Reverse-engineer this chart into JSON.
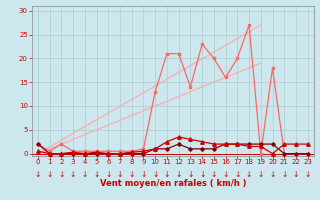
{
  "bg_color": "#cce8ee",
  "grid_color": "#aacccc",
  "xlabel": "Vent moyen/en rafales ( km/h )",
  "xlabel_color": "#cc0000",
  "tick_color": "#cc0000",
  "ylim": [
    -0.5,
    31
  ],
  "xlim": [
    -0.5,
    23.5
  ],
  "yticks": [
    0,
    5,
    10,
    15,
    20,
    25,
    30
  ],
  "xticks": [
    0,
    1,
    2,
    3,
    4,
    5,
    6,
    7,
    8,
    9,
    10,
    11,
    12,
    13,
    14,
    15,
    16,
    17,
    18,
    19,
    20,
    21,
    22,
    23
  ],
  "series_diagonal": {
    "x": [
      0,
      19
    ],
    "y": [
      0,
      19
    ],
    "color": "#ffaaaa",
    "linewidth": 0.9,
    "zorder": 1
  },
  "series_diagonal2": {
    "x": [
      0,
      19
    ],
    "y": [
      0,
      27
    ],
    "color": "#ffaaaa",
    "linewidth": 0.9,
    "zorder": 1
  },
  "series_pink": {
    "x": [
      0,
      1,
      2,
      3,
      4,
      5,
      6,
      7,
      8,
      9,
      10,
      11,
      12,
      13,
      14,
      15,
      16,
      17,
      18,
      19,
      20,
      21,
      22,
      23
    ],
    "y": [
      2,
      0.5,
      2,
      0.5,
      0.5,
      0.5,
      0.5,
      0.5,
      0.5,
      1,
      13,
      21,
      21,
      14,
      23,
      20,
      16,
      20,
      27,
      0,
      18,
      0,
      0,
      0
    ],
    "color": "#ff6666",
    "linewidth": 0.9,
    "marker": "s",
    "markersize": 2.0,
    "zorder": 3
  },
  "series_dark": {
    "x": [
      0,
      1,
      2,
      3,
      4,
      5,
      6,
      7,
      8,
      9,
      10,
      11,
      12,
      13,
      14,
      15,
      16,
      17,
      18,
      19,
      20,
      21,
      22,
      23
    ],
    "y": [
      2,
      0,
      0,
      0,
      0,
      0,
      0,
      0,
      0,
      0,
      1,
      1,
      2,
      1,
      1,
      1,
      2,
      2,
      2,
      2,
      2,
      0,
      0,
      0
    ],
    "color": "#880000",
    "linewidth": 0.9,
    "marker": "D",
    "markersize": 1.8,
    "zorder": 4
  },
  "series_triangle": {
    "x": [
      0,
      1,
      2,
      3,
      4,
      5,
      6,
      7,
      8,
      9,
      10,
      11,
      12,
      13,
      14,
      15,
      16,
      17,
      18,
      19,
      20,
      21,
      22,
      23
    ],
    "y": [
      0.5,
      0,
      0,
      0.3,
      0,
      0.3,
      0,
      0,
      0.3,
      0.5,
      1.0,
      2.5,
      3.5,
      3.0,
      2.5,
      2.0,
      2.0,
      2.0,
      1.5,
      1.5,
      0,
      2,
      2,
      2
    ],
    "color": "#cc0000",
    "linewidth": 0.9,
    "marker": "^",
    "markersize": 2.5,
    "zorder": 5
  },
  "arrow_color": "#cc0000",
  "arrow_symbol": "↓",
  "arrow_fontsize": 5.5
}
